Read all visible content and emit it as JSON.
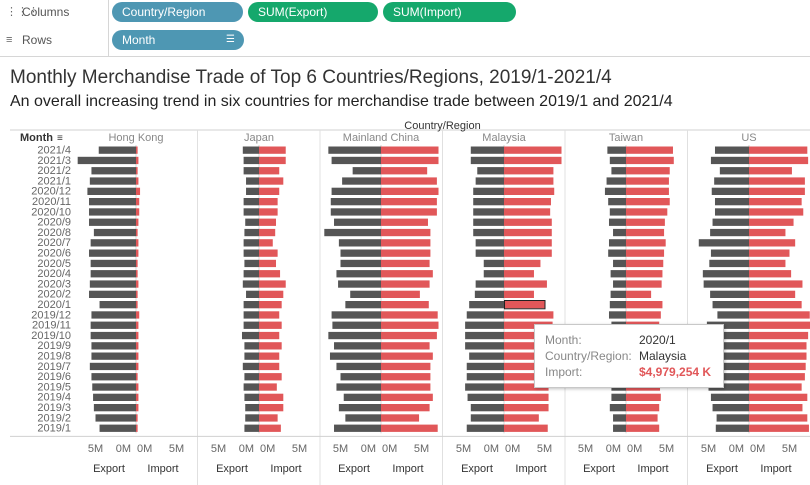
{
  "shelves": {
    "columns_label": "Columns",
    "rows_label": "Rows",
    "column_pills": [
      "Country/Region",
      "SUM(Export)",
      "SUM(Import)"
    ],
    "row_pill": "Month"
  },
  "icons": {
    "columns": "columns-icon",
    "rows": "rows-icon",
    "sort": "sort-icon"
  },
  "colors": {
    "export": "#555555",
    "import": "#e15759",
    "pill_blue": "#4e97b3",
    "pill_green": "#15a86c"
  },
  "tooltip": {
    "month_key": "Month:",
    "month_value": "2020/1",
    "country_key": "Country/Region:",
    "country_value": "Malaysia",
    "import_key": "Import:",
    "import_value": "$4,979,254 K"
  },
  "chart_data": {
    "type": "bar",
    "orientation": "horizontal, diverging (export left, import right)",
    "title": "Monthly Merchandise Trade of Top 6 Countries/Regions, 2019/1-2021/4",
    "subtitle": "An overall increasing trend in six countries for merchandise trade between 2019/1 and 2021/4",
    "column_header": "Country/Region",
    "row_header": "Month",
    "units": "million USD",
    "months": [
      "2021/4",
      "2021/3",
      "2021/2",
      "2021/1",
      "2020/12",
      "2020/11",
      "2020/10",
      "2020/9",
      "2020/8",
      "2020/7",
      "2020/6",
      "2020/5",
      "2020/4",
      "2020/3",
      "2020/2",
      "2020/1",
      "2019/12",
      "2019/11",
      "2019/10",
      "2019/9",
      "2019/8",
      "2019/7",
      "2019/6",
      "2019/5",
      "2019/4",
      "2019/3",
      "2019/2",
      "2019/1"
    ],
    "axis_ticks": [
      "5M",
      "0M",
      "0M",
      "5M"
    ],
    "axis_labels": [
      "Export",
      "Import"
    ],
    "grid": false,
    "selected": {
      "country": "Malaysia",
      "month": "2020/1"
    },
    "series": [
      {
        "name": "Hong Kong",
        "export": [
          4.6,
          7.2,
          5.5,
          5.7,
          6.0,
          5.8,
          5.8,
          5.8,
          5.2,
          5.6,
          5.8,
          5.6,
          5.6,
          5.7,
          5.8,
          4.5,
          5.5,
          5.6,
          5.6,
          5.5,
          5.5,
          5.7,
          5.5,
          5.4,
          5.3,
          5.2,
          5.0,
          4.5
        ],
        "import": [
          0.2,
          0.3,
          0.2,
          0.3,
          0.5,
          0.4,
          0.4,
          0.3,
          0.2,
          0.3,
          0.3,
          0.2,
          0.2,
          0.3,
          0.2,
          0.2,
          0.4,
          0.3,
          0.3,
          0.3,
          0.3,
          0.3,
          0.2,
          0.3,
          0.3,
          0.3,
          0.2,
          0.2
        ]
      },
      {
        "name": "Japan",
        "export": [
          2.0,
          1.9,
          1.9,
          1.6,
          1.6,
          1.9,
          1.9,
          1.7,
          1.8,
          1.9,
          1.9,
          1.8,
          1.9,
          2.0,
          1.6,
          1.9,
          1.9,
          1.9,
          2.1,
          1.8,
          1.8,
          2.0,
          1.8,
          1.9,
          1.8,
          1.7,
          1.7,
          1.8
        ],
        "import": [
          3.3,
          3.3,
          2.5,
          3.0,
          2.5,
          2.3,
          2.3,
          2.1,
          2.0,
          1.7,
          2.3,
          2.1,
          2.6,
          3.3,
          3.0,
          2.8,
          2.5,
          2.8,
          2.5,
          2.8,
          2.5,
          2.5,
          2.8,
          2.2,
          3.0,
          3.0,
          2.3,
          2.7
        ]
      },
      {
        "name": "Mainland China",
        "export": [
          6.5,
          6.1,
          3.5,
          4.8,
          6.1,
          6.2,
          6.2,
          5.8,
          7.0,
          5.2,
          5.0,
          5.0,
          5.5,
          5.3,
          3.8,
          4.4,
          6.1,
          6.0,
          6.5,
          5.8,
          6.3,
          5.5,
          5.0,
          5.5,
          4.6,
          5.2,
          4.4,
          5.8
        ],
        "import": [
          7.1,
          7.1,
          5.7,
          6.9,
          7.1,
          6.9,
          6.9,
          5.8,
          6.1,
          6.1,
          6.1,
          6.0,
          6.4,
          6.0,
          4.8,
          5.9,
          7.0,
          7.1,
          6.9,
          6.0,
          6.4,
          6.1,
          6.1,
          6.1,
          6.4,
          6.0,
          4.7,
          7.0
        ]
      },
      {
        "name": "Malaysia",
        "export": [
          4.1,
          4.1,
          3.3,
          3.5,
          3.8,
          3.8,
          3.8,
          3.8,
          3.8,
          3.5,
          3.5,
          2.5,
          2.5,
          3.5,
          3.6,
          4.3,
          4.6,
          4.8,
          4.8,
          4.8,
          4.3,
          4.6,
          4.6,
          4.8,
          4.5,
          4.1,
          4.1,
          4.6
        ],
        "import": [
          7.1,
          7.1,
          6.1,
          6.1,
          6.2,
          5.8,
          5.7,
          5.9,
          5.9,
          5.9,
          5.9,
          4.5,
          3.7,
          5.3,
          3.7,
          5.0,
          6.1,
          6.0,
          6.3,
          5.6,
          5.6,
          5.2,
          5.2,
          5.5,
          5.5,
          5.5,
          4.3,
          5.4
        ]
      },
      {
        "name": "Taiwan",
        "export": [
          2.3,
          2.0,
          1.8,
          2.4,
          2.6,
          2.2,
          2.0,
          2.1,
          1.6,
          2.1,
          2.2,
          1.6,
          1.9,
          1.6,
          1.9,
          2.0,
          2.1,
          1.8,
          1.6,
          1.6,
          2.0,
          1.9,
          1.7,
          1.8,
          1.8,
          2.0,
          1.6,
          1.6
        ],
        "import": [
          5.8,
          5.9,
          5.4,
          5.3,
          5.3,
          5.4,
          5.1,
          4.8,
          4.7,
          4.9,
          4.7,
          4.6,
          4.5,
          4.4,
          3.1,
          4.5,
          4.3,
          4.1,
          4.3,
          4.2,
          4.3,
          4.0,
          4.3,
          4.2,
          4.3,
          4.1,
          3.9,
          4.1
        ]
      },
      {
        "name": "US",
        "export": [
          4.2,
          4.7,
          3.6,
          4.3,
          4.6,
          4.2,
          4.2,
          4.5,
          4.8,
          6.2,
          4.7,
          4.9,
          5.7,
          5.6,
          4.8,
          4.5,
          3.9,
          5.2,
          4.8,
          4.5,
          5.0,
          5.1,
          5.2,
          5.0,
          4.7,
          4.5,
          4.0,
          4.1
        ],
        "import": [
          7.2,
          7.3,
          5.3,
          6.9,
          6.9,
          6.5,
          6.7,
          5.5,
          4.5,
          5.7,
          5.0,
          4.5,
          5.2,
          6.6,
          5.7,
          6.5,
          7.5,
          7.7,
          7.3,
          7.1,
          7.1,
          7.0,
          6.9,
          6.5,
          7.2,
          6.6,
          7.2,
          7.4
        ]
      }
    ]
  }
}
